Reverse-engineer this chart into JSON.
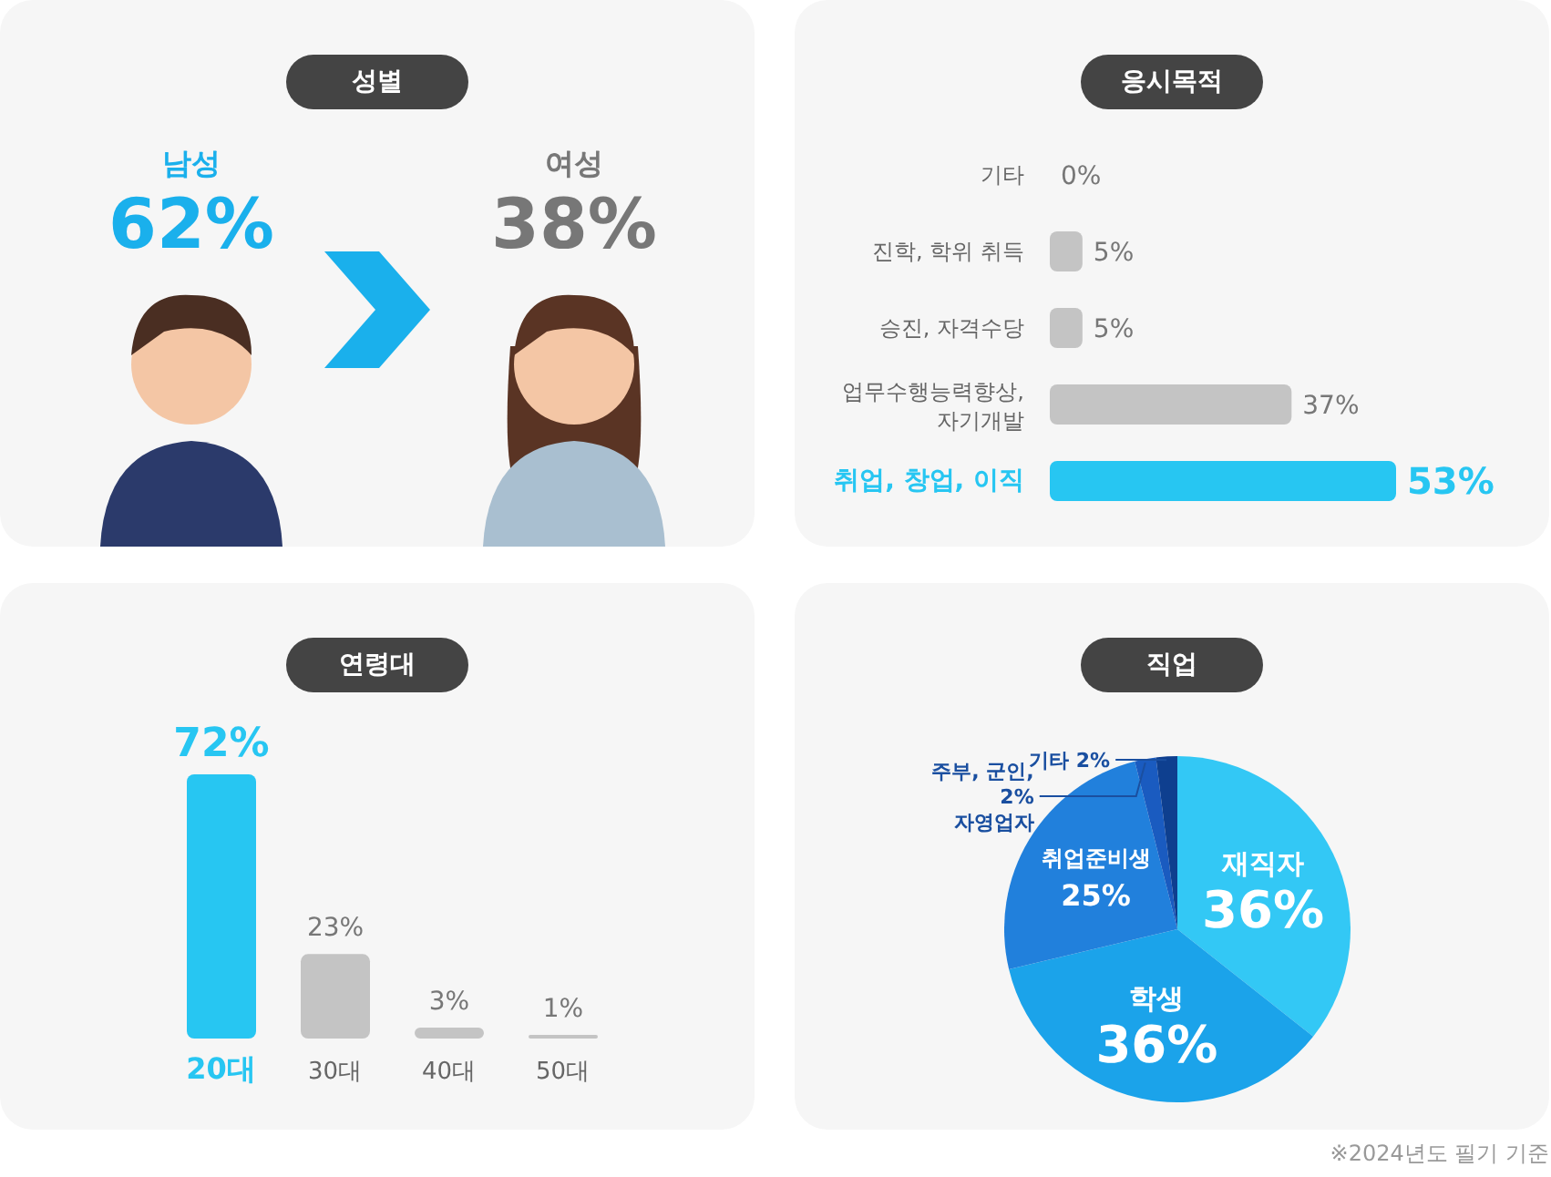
{
  "chart_data": [
    {
      "type": "other",
      "title": "성별",
      "categories": [
        "남성",
        "여성"
      ],
      "values": [
        62,
        38
      ],
      "value_labels": [
        "62%",
        "38%"
      ]
    },
    {
      "type": "bar",
      "orientation": "horizontal",
      "title": "응시목적",
      "categories": [
        "기타",
        "진학, 학위 취득",
        "승진, 자격수당",
        "업무수행능력향상, 자기개발",
        "취업, 창업, 이직"
      ],
      "values": [
        0,
        5,
        5,
        37,
        53
      ],
      "value_labels": [
        "0%",
        "5%",
        "5%",
        "37%",
        "53%"
      ],
      "colors": [
        "#c4c4c4",
        "#c4c4c4",
        "#c4c4c4",
        "#c4c4c4",
        "#27c6f2"
      ]
    },
    {
      "type": "bar",
      "title": "연령대",
      "categories": [
        "20대",
        "30대",
        "40대",
        "50대"
      ],
      "values": [
        72,
        23,
        3,
        1
      ],
      "value_labels": [
        "72%",
        "23%",
        "3%",
        "1%"
      ],
      "colors": [
        "#27c6f2",
        "#c4c4c4",
        "#c4c4c4",
        "#c4c4c4"
      ]
    },
    {
      "type": "pie",
      "title": "직업",
      "categories": [
        "재직자",
        "학생",
        "취업준비생",
        "주부, 군인, 자영업자",
        "기타"
      ],
      "values": [
        36,
        36,
        25,
        2,
        2
      ],
      "value_labels": [
        "36%",
        "36%",
        "25%",
        "2%",
        "2%"
      ],
      "colors": [
        "#33c8f5",
        "#1ba3ea",
        "#2180dc",
        "#1a5bc0",
        "#0e3f8f"
      ],
      "annotations": [
        "※2024년도 필기 기준"
      ]
    }
  ]
}
